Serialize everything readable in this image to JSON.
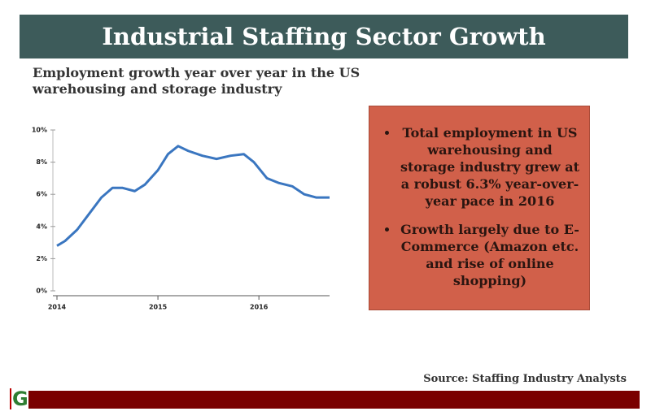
{
  "header": {
    "title": "Industrial Staffing Sector Growth"
  },
  "chart_data": {
    "type": "line",
    "title": "Employment growth year over year in the US warehousing and storage industry",
    "x": [
      2014.0,
      2014.08,
      2014.2,
      2014.32,
      2014.44,
      2014.55,
      2014.65,
      2014.77,
      2014.87,
      2015.0,
      2015.1,
      2015.2,
      2015.3,
      2015.44,
      2015.58,
      2015.72,
      2015.85,
      2015.95,
      2016.08,
      2016.2,
      2016.33,
      2016.45,
      2016.57,
      2016.7
    ],
    "series": [
      {
        "name": "Employment growth",
        "color": "#3a76c0",
        "values": [
          2.8,
          3.1,
          3.8,
          4.8,
          5.8,
          6.4,
          6.4,
          6.2,
          6.6,
          7.5,
          8.5,
          9.0,
          8.7,
          8.4,
          8.2,
          8.4,
          8.5,
          8.0,
          7.0,
          6.7,
          6.5,
          6.0,
          5.8,
          5.8
        ]
      }
    ],
    "xlim": [
      2014,
      2016.7
    ],
    "xticks": [
      2014,
      2015,
      2016
    ],
    "ylim": [
      0,
      10
    ],
    "yticks": [
      {
        "value": 0,
        "label": "0%"
      },
      {
        "value": 2,
        "label": "2%"
      },
      {
        "value": 4,
        "label": "4%"
      },
      {
        "value": 6,
        "label": "6%"
      },
      {
        "value": 8,
        "label": "8%"
      },
      {
        "value": 10,
        "label": "10%"
      }
    ]
  },
  "bullets": [
    "Total employment in US warehousing and storage industry grew at a robust 6.3% year-over-year pace in 2016",
    "Growth largely due to E-Commerce (Amazon etc. and rise of online shopping)"
  ],
  "source": "Source: Staffing Industry Analysts",
  "logo": "G"
}
